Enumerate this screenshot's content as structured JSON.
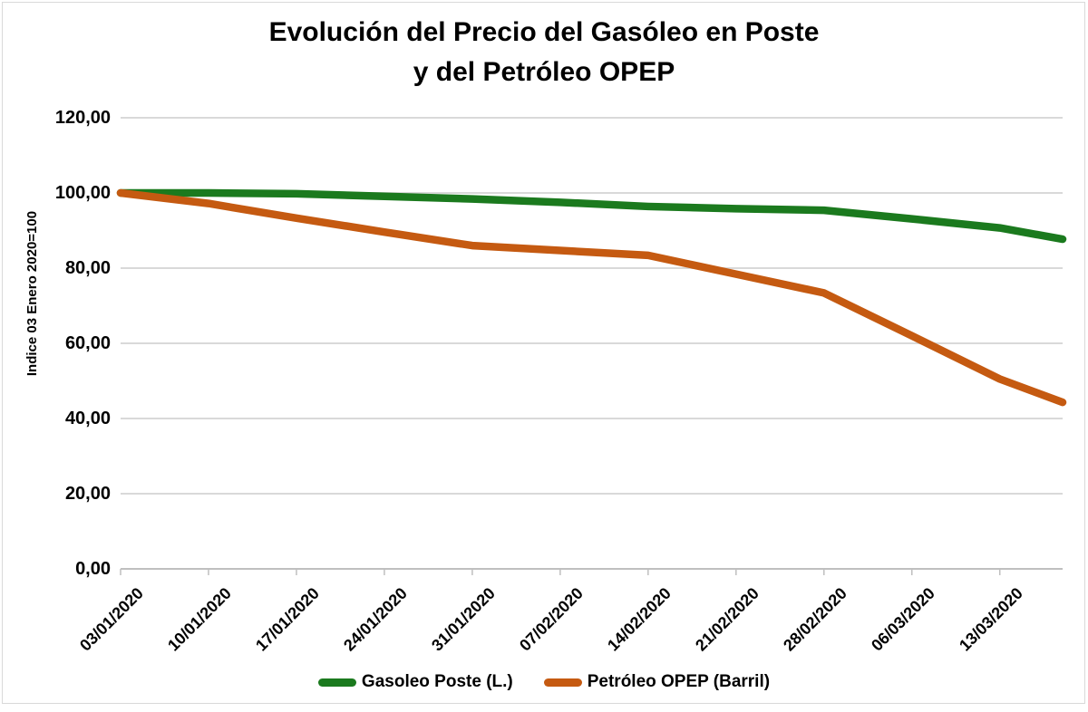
{
  "chart_data": {
    "type": "line",
    "title_line1": "Evolución del Precio del Gasóleo en Poste",
    "title_line2": "y del Petróleo OPEP",
    "y_axis": {
      "label": "Indice 03 Enero 2020=100",
      "tick_values": [
        0,
        20,
        40,
        60,
        80,
        100,
        120
      ],
      "tick_labels": [
        "0,00",
        "20,00",
        "40,00",
        "60,00",
        "80,00",
        "100,00",
        "120,00"
      ],
      "range": [
        0,
        120
      ],
      "grid": true
    },
    "x_axis": {
      "tick_labels": [
        "03/01/2020",
        "10/01/2020",
        "17/01/2020",
        "24/01/2020",
        "31/01/2020",
        "07/02/2020",
        "14/02/2020",
        "21/02/2020",
        "28/02/2020",
        "06/03/2020",
        "13/03/2020"
      ],
      "tick_day_offsets": [
        0,
        7,
        14,
        21,
        28,
        35,
        42,
        49,
        56,
        63,
        70
      ],
      "range_days": [
        0,
        75
      ]
    },
    "series": [
      {
        "name": "Gasoleo Poste (L.)",
        "color": "#1B7A1E",
        "day_offsets": [
          0,
          7,
          14,
          21,
          28,
          35,
          42,
          49,
          56,
          63,
          70,
          75
        ],
        "values": [
          100.0,
          100.0,
          99.8,
          99.1,
          98.4,
          97.5,
          96.4,
          95.8,
          95.4,
          93.1,
          90.7,
          87.7
        ]
      },
      {
        "name": "Petróleo OPEP (Barril)",
        "color": "#C55A11",
        "day_offsets": [
          0,
          7,
          14,
          21,
          28,
          35,
          42,
          49,
          56,
          63,
          70,
          75
        ],
        "values": [
          100.0,
          97.2,
          93.3,
          89.6,
          86.0,
          84.7,
          83.4,
          78.4,
          73.4,
          62.0,
          50.5,
          44.3
        ]
      }
    ],
    "legend": {
      "position": "bottom",
      "entries": [
        "Gasoleo Poste (L.)",
        "Petróleo OPEP (Barril)"
      ]
    },
    "colors": {
      "background": "#FFFFFF",
      "gridline": "#D9D9D9",
      "axis_line": "#BFBFBF",
      "tick_mark": "#BFBFBF",
      "border": "#D9D9D9",
      "text": "#000000"
    }
  }
}
